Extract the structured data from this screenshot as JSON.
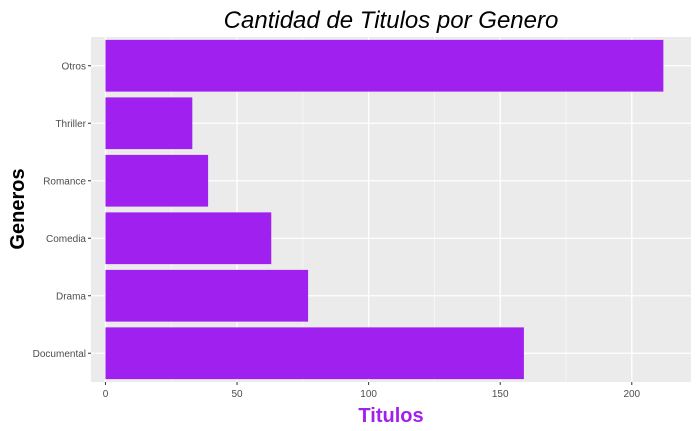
{
  "chart_data": {
    "type": "bar",
    "orientation": "horizontal",
    "title": "Cantidad de Titulos por Genero",
    "xlabel": "Titulos",
    "ylabel": "Generos",
    "categories": [
      "Documental",
      "Drama",
      "Comedia",
      "Romance",
      "Thriller",
      "Otros"
    ],
    "values": [
      159,
      77,
      63,
      39,
      33,
      212
    ],
    "xlim": [
      -5.5,
      222.5
    ],
    "xticks": [
      0,
      50,
      100,
      150,
      200
    ],
    "grid": true,
    "legend": "none",
    "colors": {
      "bar": "#a020f0",
      "panel": "#ebebeb",
      "grid_major": "#ffffff",
      "grid_minor": "#f7f7f7",
      "xlabel": "#a020f0",
      "title": "#000000",
      "tick_text": "#4d4d4d",
      "tick_line": "#333333"
    }
  }
}
